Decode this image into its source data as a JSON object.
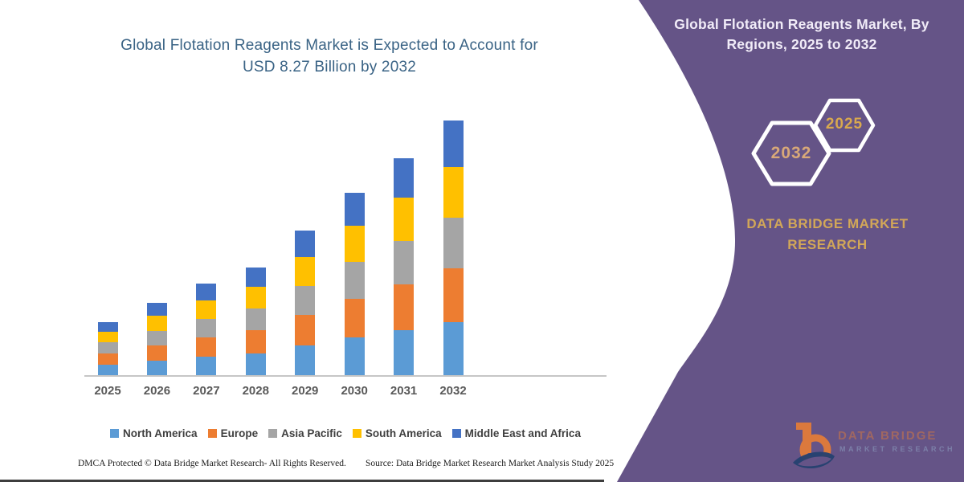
{
  "left": {
    "title_line1": "Global Flotation Reagents Market is Expected to Account for",
    "title_line2": "USD 8.27 Billion by 2032",
    "footer_dmca": "DMCA Protected © Data Bridge Market Research- All Rights Reserved.",
    "footer_source": "Source: Data Bridge Market Research Market Analysis Study 2025"
  },
  "chart_data": {
    "type": "bar",
    "stacked": true,
    "title": "Global Flotation Reagents Market is Expected to Account for USD 8.27 Billion by 2032",
    "unit": "USD Billion",
    "categories": [
      "2025",
      "2026",
      "2027",
      "2028",
      "2029",
      "2030",
      "2031",
      "2032"
    ],
    "series": [
      {
        "name": "North America",
        "color": "#5B9BD5",
        "values": [
          0.37,
          0.5,
          0.63,
          0.74,
          0.99,
          1.25,
          1.48,
          1.74
        ]
      },
      {
        "name": "Europe",
        "color": "#ED7D31",
        "values": [
          0.37,
          0.5,
          0.63,
          0.74,
          0.99,
          1.25,
          1.48,
          1.74
        ]
      },
      {
        "name": "Asia Pacific",
        "color": "#A5A5A5",
        "values": [
          0.35,
          0.47,
          0.6,
          0.7,
          0.94,
          1.19,
          1.41,
          1.65
        ]
      },
      {
        "name": "South America",
        "color": "#FFC000",
        "values": [
          0.35,
          0.47,
          0.6,
          0.7,
          0.94,
          1.19,
          1.41,
          1.65
        ]
      },
      {
        "name": "Middle East and Africa",
        "color": "#4472C4",
        "values": [
          0.32,
          0.43,
          0.53,
          0.63,
          0.85,
          1.05,
          1.29,
          1.49
        ]
      }
    ],
    "totals": [
      1.76,
      2.37,
      2.99,
      3.51,
      4.71,
      5.93,
      7.07,
      8.27
    ],
    "xlabel": "",
    "ylabel": "",
    "ylim": [
      0,
      8.8
    ],
    "grid": false,
    "y_axis_visible": false,
    "legend_position": "bottom"
  },
  "right_panel": {
    "bg_color": "#655487",
    "title": "Global Flotation Reagents Market, By Regions, 2025 to 2032",
    "hexagon_back_label": "2032",
    "hexagon_front_label": "2025",
    "brand_line1": "DATA BRIDGE MARKET",
    "brand_line2": "RESEARCH",
    "brand_color": "#d2a758",
    "watermark_brand_top": "DATA BRIDGE",
    "watermark_brand_bottom": "MARKET RESEARCH"
  }
}
